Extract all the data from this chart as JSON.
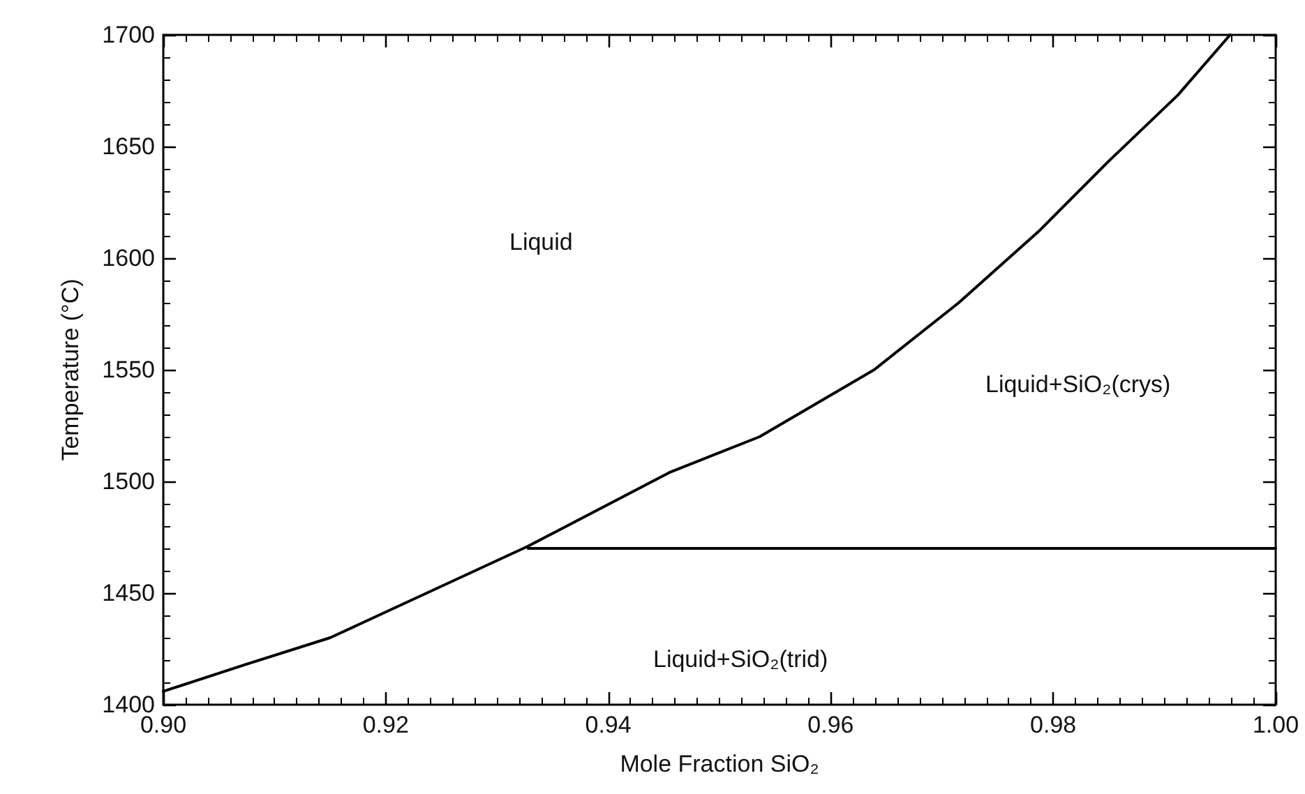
{
  "chart_data": {
    "type": "line",
    "xlabel": "Mole Fraction SiO₂",
    "ylabel": "Temperature (°C)",
    "xlim": [
      0.9,
      1.0
    ],
    "xticks": [
      {
        "value": 0.9,
        "label": "0.90"
      },
      {
        "value": 0.92,
        "label": "0.92"
      },
      {
        "value": 0.94,
        "label": "0.94"
      },
      {
        "value": 0.96,
        "label": "0.96"
      },
      {
        "value": 0.98,
        "label": "0.98"
      },
      {
        "value": 1.0,
        "label": "1.00"
      }
    ],
    "ylim": [
      1400,
      1700
    ],
    "yticks": [
      1400,
      1450,
      1500,
      1550,
      1600,
      1650,
      1700
    ],
    "series": [
      {
        "color": "#000000",
        "x": [
          0.9,
          0.9074,
          0.915,
          0.9328,
          0.9455,
          0.9536,
          0.9639,
          0.9715,
          0.9787,
          0.9849,
          0.9912,
          0.9959
        ],
        "values": [
          1406,
          1418,
          1430,
          1471,
          1504,
          1520,
          1550,
          1580,
          1612,
          1643,
          1673,
          1700
        ]
      },
      {
        "color": "#000000",
        "x": [
          0.9328,
          1.0
        ],
        "values": [
          1470,
          1470
        ]
      }
    ],
    "annotations": [
      "Liquid",
      "Liquid+SiO₂(crys)",
      "Liquid+SiO₂(trid)"
    ],
    "grid": false,
    "marker": "none",
    "line_style": "solid"
  }
}
